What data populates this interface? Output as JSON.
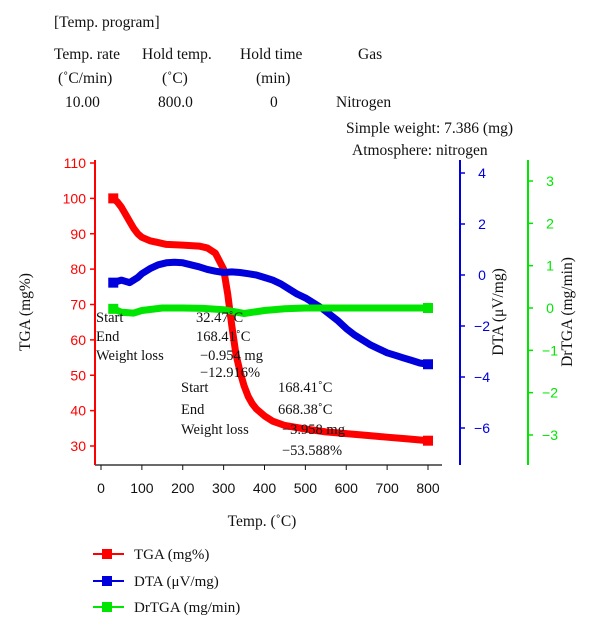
{
  "program": {
    "heading": "[Temp. program]",
    "headers": [
      "Temp. rate",
      "Hold temp.",
      "Hold time",
      "Gas"
    ],
    "units": [
      "(˚C/min)",
      "(˚C)",
      "(min)",
      ""
    ],
    "values": [
      "10.00",
      "800.0",
      "0",
      "Nitrogen"
    ],
    "sample_weight": "Simple weight: 7.386 (mg)",
    "atmosphere": "Atmosphere: nitrogen"
  },
  "chart_data": {
    "type": "line",
    "xlabel": "Temp. (˚C)",
    "xlim": [
      0,
      800
    ],
    "xticks": [
      0,
      100,
      200,
      300,
      400,
      500,
      600,
      700,
      800
    ],
    "y_axes": [
      {
        "id": "tga",
        "label": "TGA (mg%)",
        "color": "#ff0000",
        "range": [
          25,
          110
        ],
        "ticks": [
          30,
          40,
          50,
          60,
          70,
          80,
          90,
          100,
          110
        ],
        "position": "left"
      },
      {
        "id": "dta",
        "label": "DTA (μV/mg)",
        "color": "#0000dd",
        "range": [
          -7.5,
          4.5
        ],
        "ticks": [
          -6,
          -4,
          -2,
          0,
          2,
          4
        ],
        "tick_labels": [
          "−6",
          "−4",
          "−2",
          "0",
          "2",
          "4"
        ],
        "position": "right"
      },
      {
        "id": "drtga",
        "label": "DrTGA (mg/min)",
        "color": "#00e600",
        "range": [
          -3.7,
          3.4
        ],
        "ticks": [
          -3,
          -2,
          -1,
          0,
          1,
          2,
          3
        ],
        "tick_labels": [
          "−3",
          "−2",
          "−1",
          "0",
          "1",
          "2",
          "3"
        ],
        "position": "far-right"
      }
    ],
    "series": [
      {
        "name": "TGA (mg%)",
        "axis": "tga",
        "color": "#ff0000",
        "x": [
          30,
          40,
          50,
          60,
          70,
          80,
          90,
          100,
          120,
          140,
          160,
          200,
          240,
          260,
          280,
          300,
          310,
          320,
          330,
          340,
          350,
          360,
          370,
          380,
          400,
          420,
          450,
          500,
          550,
          600,
          650,
          700,
          750,
          800
        ],
        "y": [
          100,
          99,
          97.5,
          95.5,
          93.5,
          91.5,
          90,
          89,
          88,
          87.5,
          87,
          86.8,
          86.5,
          86,
          84.5,
          80,
          73,
          64,
          56,
          51,
          47,
          44,
          42,
          40.5,
          38.5,
          37,
          35.8,
          34.8,
          34,
          33.5,
          33,
          32.5,
          32,
          31.5
        ]
      },
      {
        "name": "DTA (μV/mg)",
        "axis": "dta",
        "color": "#0000dd",
        "x": [
          30,
          50,
          70,
          90,
          100,
          120,
          140,
          160,
          180,
          200,
          220,
          240,
          260,
          280,
          300,
          320,
          340,
          360,
          380,
          400,
          420,
          440,
          460,
          480,
          500,
          520,
          540,
          560,
          580,
          600,
          620,
          640,
          660,
          680,
          700,
          720,
          740,
          760,
          780,
          800
        ],
        "y": [
          -0.3,
          -0.2,
          -0.3,
          -0.1,
          0.05,
          0.25,
          0.4,
          0.48,
          0.5,
          0.48,
          0.4,
          0.32,
          0.22,
          0.15,
          0.1,
          0.12,
          0.1,
          0.05,
          0.0,
          -0.1,
          -0.2,
          -0.35,
          -0.55,
          -0.75,
          -0.9,
          -1.1,
          -1.3,
          -1.55,
          -1.8,
          -2.1,
          -2.35,
          -2.55,
          -2.75,
          -2.9,
          -3.05,
          -3.15,
          -3.25,
          -3.35,
          -3.45,
          -3.5
        ]
      },
      {
        "name": "DrTGA (mg/min)",
        "axis": "drtga",
        "color": "#00e600",
        "x": [
          30,
          50,
          80,
          100,
          150,
          200,
          250,
          300,
          350,
          400,
          450,
          500,
          550,
          600,
          650,
          700,
          750,
          800
        ],
        "y": [
          -0.02,
          -0.1,
          -0.12,
          -0.06,
          0.0,
          0.0,
          -0.01,
          -0.04,
          -0.13,
          -0.06,
          -0.02,
          0.0,
          0.0,
          0.0,
          0.0,
          0.0,
          0.0,
          0.0
        ]
      }
    ],
    "annotations": [
      {
        "start_label": "Start",
        "start_value": "32.47˚C",
        "end_label": "End",
        "end_value": "168.41˚C",
        "loss_label": "Weight loss",
        "loss_mg": "−0.954 mg",
        "loss_pct": "−12.916%"
      },
      {
        "start_label": "Start",
        "start_value": "168.41˚C",
        "end_label": "End",
        "end_value": "668.38˚C",
        "loss_label": "Weight loss",
        "loss_mg": "−3.958 mg",
        "loss_pct": "−53.588%"
      }
    ],
    "legend": {
      "position": "bottom-left",
      "entries": [
        "TGA (mg%)",
        "DTA (μV/mg)",
        "DrTGA (mg/min)"
      ]
    }
  }
}
